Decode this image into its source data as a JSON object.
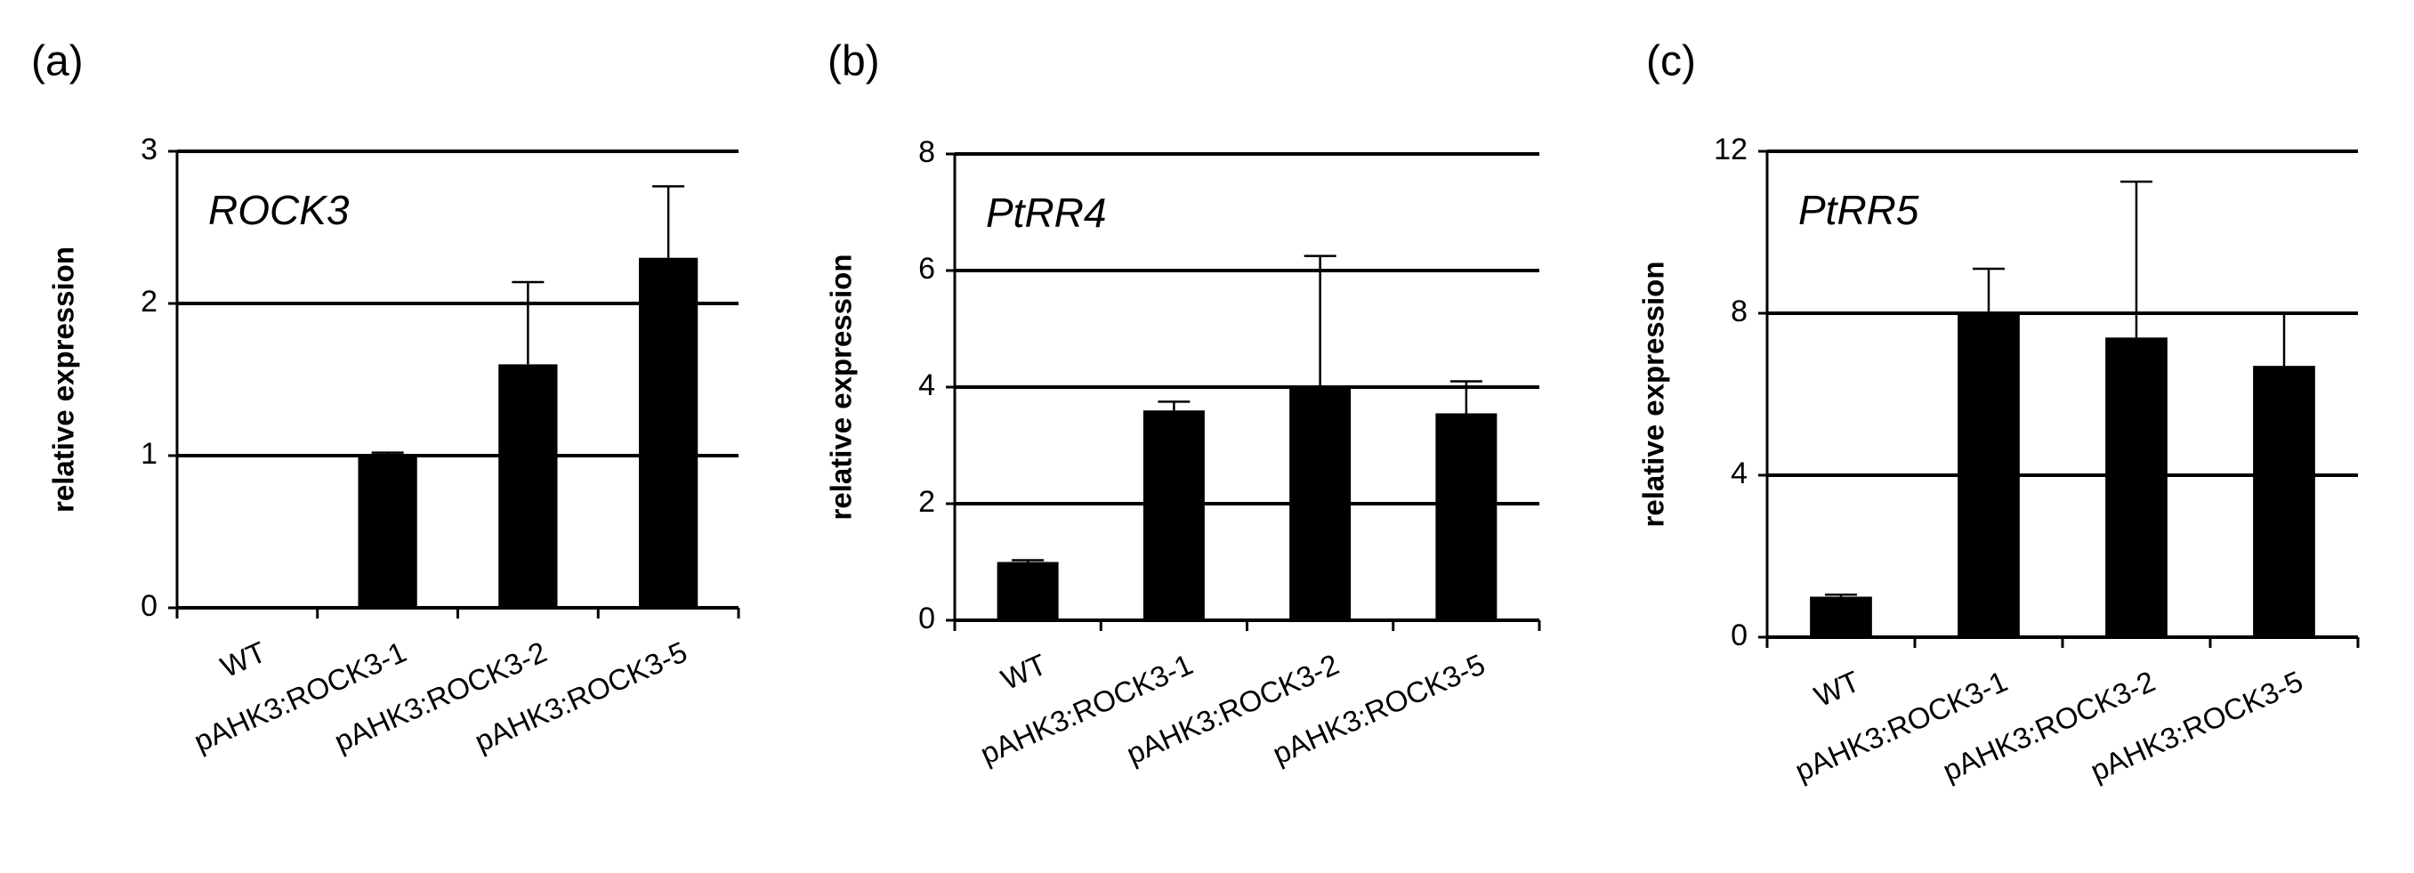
{
  "chart_data": [
    {
      "type": "bar",
      "panel_label": "(a)",
      "title": "ROCK3",
      "y_label": "relative expression",
      "categories": [
        "WT",
        "pAHK3:ROCK3-1",
        "pAHK3:ROCK3-2",
        "pAHK3:ROCK3-5"
      ],
      "values": [
        0,
        1.0,
        1.6,
        2.3
      ],
      "errors": [
        0,
        0.02,
        0.54,
        0.47
      ],
      "color": "#000000",
      "ylim": [
        0,
        3
      ],
      "yticks": [
        0,
        1,
        2,
        3
      ],
      "grid": true
    },
    {
      "type": "bar",
      "panel_label": "(b)",
      "title": "PtRR4",
      "y_label": "relative expression",
      "categories": [
        "WT",
        "pAHK3:ROCK3-1",
        "pAHK3:ROCK3-2",
        "pAHK3:ROCK3-5"
      ],
      "values": [
        1.0,
        3.6,
        4.0,
        3.55
      ],
      "errors": [
        0.03,
        0.15,
        2.25,
        0.55
      ],
      "color": "#000000",
      "ylim": [
        0,
        8
      ],
      "yticks": [
        0,
        2,
        4,
        6,
        8
      ],
      "grid": true
    },
    {
      "type": "bar",
      "panel_label": "(c)",
      "title": "PtRR5",
      "y_label": "relative expression",
      "categories": [
        "WT",
        "pAHK3:ROCK3-1",
        "pAHK3:ROCK3-2",
        "pAHK3:ROCK3-5"
      ],
      "values": [
        1.0,
        8.0,
        7.4,
        6.7
      ],
      "errors": [
        0.05,
        1.1,
        3.85,
        1.3
      ],
      "color": "#000000",
      "ylim": [
        0,
        12
      ],
      "yticks": [
        0,
        4,
        8,
        12
      ],
      "grid": true
    }
  ]
}
